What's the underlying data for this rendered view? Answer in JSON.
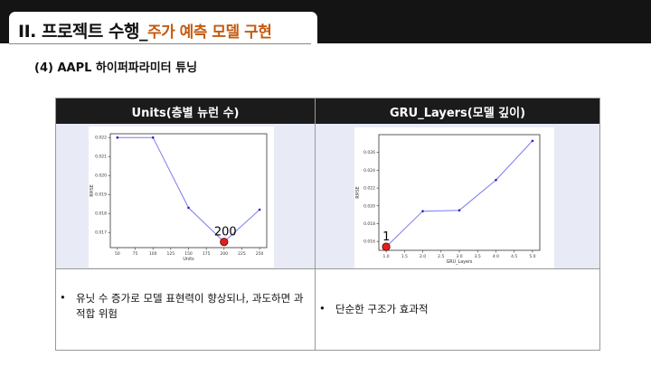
{
  "header": {
    "title_prefix": "II. 프로젝트 수행_",
    "title_accent": "주가 예측 모델 구현"
  },
  "subtitle": "(4) AAPL 하이퍼파라미터 튜닝",
  "table": {
    "col_left_header": "Units(층별 뉴런 수)",
    "col_right_header": "GRU_Layers(모델 깊이)",
    "left_note": "유닛 수 증가로 모델 표현력이 향상되나, 과도하면 과적합 위험",
    "right_note": "단순한 구조가 효과적",
    "bullet": "•"
  },
  "chart_data": [
    {
      "type": "line",
      "title": "",
      "xlabel": "Units",
      "ylabel": "RMSE",
      "x": [
        50,
        100,
        150,
        200,
        250
      ],
      "values": [
        0.022,
        0.022,
        0.0183,
        0.0165,
        0.0182
      ],
      "xticks": [
        50,
        75,
        100,
        125,
        150,
        175,
        200,
        225,
        250
      ],
      "xtick_labels": [
        "50",
        "75",
        "100",
        "125",
        "150",
        "175",
        "200",
        "225",
        "250"
      ],
      "yticks": [
        0.017,
        0.018,
        0.019,
        0.02,
        0.021,
        0.022
      ],
      "ytick_labels": [
        "0.017",
        "0.018",
        "0.019",
        "0.020",
        "0.021",
        "0.022"
      ],
      "xlim": [
        40,
        260
      ],
      "ylim": [
        0.0162,
        0.0222
      ],
      "highlight_x": 200,
      "highlight_y": 0.0165,
      "highlight_label": "200",
      "line_color": "#7b7bf0",
      "highlight_color": "#e02020"
    },
    {
      "type": "line",
      "title": "",
      "xlabel": "GRU_Layers",
      "ylabel": "RMSE",
      "x": [
        1,
        2,
        3,
        4,
        5
      ],
      "values": [
        0.0154,
        0.0194,
        0.0195,
        0.0229,
        0.0273
      ],
      "xticks": [
        1.0,
        1.5,
        2.0,
        2.5,
        3.0,
        3.5,
        4.0,
        4.5,
        5.0
      ],
      "xtick_labels": [
        "1.0",
        "1.5",
        "2.0",
        "2.5",
        "3.0",
        "3.5",
        "4.0",
        "4.5",
        "5.0"
      ],
      "yticks": [
        0.016,
        0.018,
        0.02,
        0.022,
        0.024,
        0.026
      ],
      "ytick_labels": [
        "0.016",
        "0.018",
        "0.020",
        "0.022",
        "0.024",
        "0.026"
      ],
      "xlim": [
        0.8,
        5.2
      ],
      "ylim": [
        0.015,
        0.028
      ],
      "highlight_x": 1,
      "highlight_y": 0.0154,
      "highlight_label": "1",
      "line_color": "#7b7bf0",
      "highlight_color": "#e02020"
    }
  ]
}
